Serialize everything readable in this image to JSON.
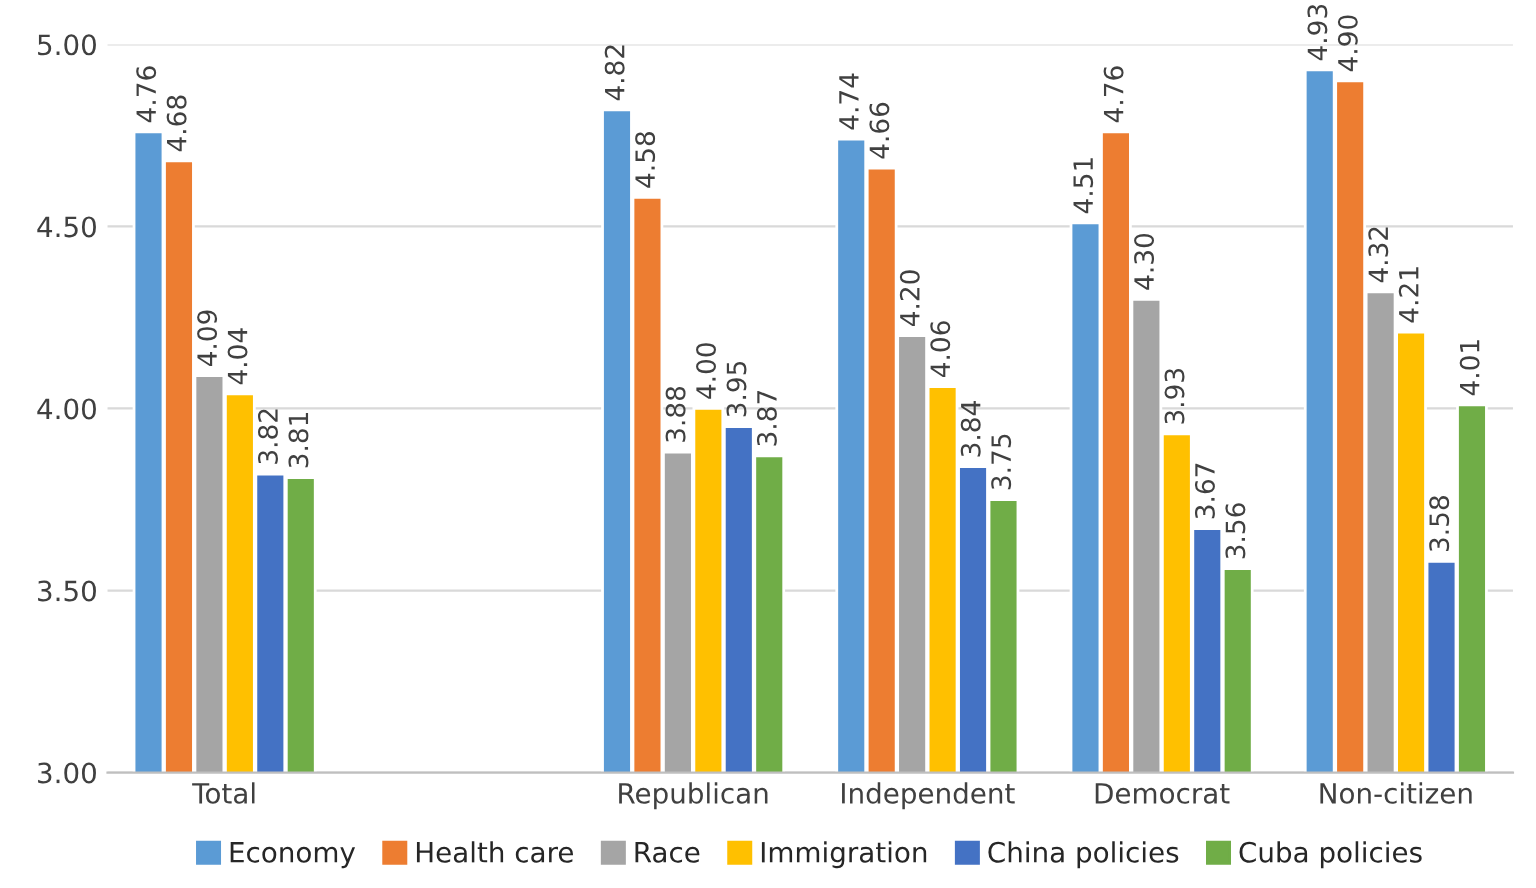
{
  "chart_data": {
    "type": "bar",
    "categories": [
      "Total",
      null,
      "Republican",
      "Independent",
      "Democrat",
      "Non-citizen"
    ],
    "series": [
      {
        "name": "Economy",
        "color": "#5b9bd5",
        "values": [
          4.76,
          null,
          4.82,
          4.74,
          4.51,
          4.93
        ],
        "value_labels": [
          "4.76",
          null,
          "4.82",
          "4.74",
          "4.51",
          "4.93"
        ]
      },
      {
        "name": "Health care",
        "color": "#ed7d31",
        "values": [
          4.68,
          null,
          4.58,
          4.66,
          4.76,
          4.9
        ],
        "value_labels": [
          "4.68",
          null,
          "4.58",
          "4.66",
          "4.76",
          "4.90"
        ]
      },
      {
        "name": "Race",
        "color": "#a5a5a5",
        "values": [
          4.09,
          null,
          3.88,
          4.2,
          4.3,
          4.32
        ],
        "value_labels": [
          "4.09",
          null,
          "3.88",
          "4.20",
          "4.30",
          "4.32"
        ]
      },
      {
        "name": "Immigration",
        "color": "#ffc000",
        "values": [
          4.04,
          null,
          4.0,
          4.06,
          3.93,
          4.21
        ],
        "value_labels": [
          "4.04",
          null,
          "4.00",
          "4.06",
          "3.93",
          "4.21"
        ]
      },
      {
        "name": "China policies",
        "color": "#4472c4",
        "values": [
          3.82,
          null,
          3.95,
          3.84,
          3.67,
          3.58
        ],
        "value_labels": [
          "3.82",
          null,
          "3.95",
          "3.84",
          "3.67",
          "3.58"
        ]
      },
      {
        "name": "Cuba policies",
        "color": "#70ad47",
        "values": [
          3.81,
          null,
          3.87,
          3.75,
          3.56,
          4.01
        ],
        "value_labels": [
          "3.81",
          null,
          "3.87",
          "3.75",
          "3.56",
          "4.01"
        ]
      }
    ],
    "ylim": [
      3,
      5
    ],
    "yticks": [
      {
        "value": 3,
        "label": "3.00"
      },
      {
        "value": 3.5,
        "label": "3.50"
      },
      {
        "value": 4,
        "label": "4.00"
      },
      {
        "value": 4.5,
        "label": "4.50"
      },
      {
        "value": 5,
        "label": "5.00"
      }
    ],
    "grid": "y",
    "legend": "bottom"
  }
}
